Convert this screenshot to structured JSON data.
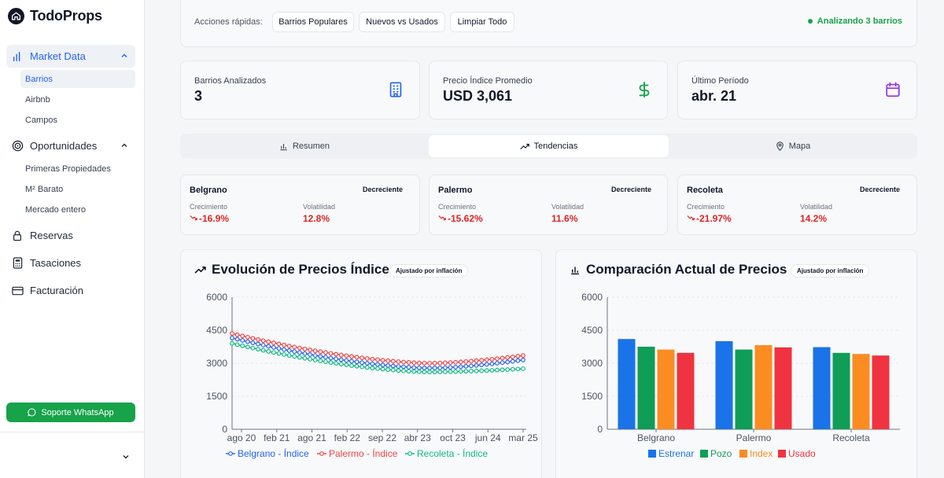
{
  "brand": {
    "name": "TodoProps"
  },
  "sidebar": {
    "groups": [
      {
        "label": "Market Data",
        "icon": "bar-chart-icon"
      },
      {
        "label": "Oportunidades",
        "icon": "target-icon"
      },
      {
        "label": "Reservas",
        "icon": "lock-icon"
      },
      {
        "label": "Tasaciones",
        "icon": "calculator-icon"
      },
      {
        "label": "Facturación",
        "icon": "credit-card-icon"
      }
    ],
    "market_items": [
      "Barrios",
      "Airbnb",
      "Campos"
    ],
    "oportunidades_items": [
      "Primeras Propiedades",
      "M² Barato",
      "Mercado entero"
    ],
    "whatsapp": "Soporte WhatsApp"
  },
  "quick_actions": {
    "label": "Acciones rápidas:",
    "buttons": [
      "Barrios Populares",
      "Nuevos vs Usados",
      "Limpiar Todo"
    ],
    "status": "Analizando 3 barrios"
  },
  "stats": [
    {
      "label": "Barrios Analizados",
      "value": "3",
      "icon": "building-icon",
      "color": "#2563eb"
    },
    {
      "label": "Precio Índice Promedio",
      "value": "USD 3,061",
      "icon": "dollar-icon",
      "color": "#16a34a"
    },
    {
      "label": "Último Período",
      "value": "abr. 21",
      "icon": "calendar-icon",
      "color": "#9333ea"
    }
  ],
  "tabs": [
    "Resumen",
    "Tendencias",
    "Mapa"
  ],
  "active_tab": "Tendencias",
  "trends": [
    {
      "name": "Belgrano",
      "tag": "Decreciente",
      "growth_label": "Crecimiento",
      "growth": "-16.9%",
      "vol_label": "Volatilidad",
      "vol": "12.8%"
    },
    {
      "name": "Palermo",
      "tag": "Decreciente",
      "growth_label": "Crecimiento",
      "growth": "-15.62%",
      "vol_label": "Volatilidad",
      "vol": "11.6%"
    },
    {
      "name": "Recoleta",
      "tag": "Decreciente",
      "growth_label": "Crecimiento",
      "growth": "-21.97%",
      "vol_label": "Volatilidad",
      "vol": "14.2%"
    }
  ],
  "charts": {
    "line_title": "Evolución de Precios Índice",
    "bar_title": "Comparación Actual de Precios",
    "pill": "Ajustado por inflación"
  },
  "chart_data": [
    {
      "type": "line",
      "title": "Evolución de Precios Índice",
      "x_ticks": [
        "ago 20",
        "feb 21",
        "ago 21",
        "feb 22",
        "sep 22",
        "abr 23",
        "oct 23",
        "jun 24",
        "mar 25"
      ],
      "ylim": [
        0,
        6000
      ],
      "y_ticks": [
        0,
        1500,
        3000,
        4500,
        6000
      ],
      "grid": true,
      "legend": "bottom",
      "series": [
        {
          "name": "Belgrano - Índice",
          "color": "#2563eb",
          "start": 4150,
          "min": 2780,
          "end": 3150
        },
        {
          "name": "Palermo - Índice",
          "color": "#ef4444",
          "start": 4350,
          "min": 3000,
          "end": 3350
        },
        {
          "name": "Recoleta - Índice",
          "color": "#10b981",
          "start": 3900,
          "min": 2600,
          "end": 2750
        }
      ]
    },
    {
      "type": "bar",
      "title": "Comparación Actual de Precios",
      "categories": [
        "Belgrano",
        "Palermo",
        "Recoleta"
      ],
      "ylim": [
        0,
        6000
      ],
      "y_ticks": [
        0,
        1500,
        3000,
        4500,
        6000
      ],
      "grid": true,
      "legend": "bottom",
      "series": [
        {
          "name": "Estrenar",
          "color": "#1a73e8",
          "values": [
            4100,
            4000,
            3730
          ]
        },
        {
          "name": "Pozo",
          "color": "#0f9d58",
          "values": [
            3750,
            3620,
            3470
          ]
        },
        {
          "name": "Index",
          "color": "#fb8c22",
          "values": [
            3620,
            3820,
            3420
          ]
        },
        {
          "name": "Usado",
          "color": "#ef3340",
          "values": [
            3470,
            3720,
            3350
          ]
        }
      ]
    }
  ]
}
